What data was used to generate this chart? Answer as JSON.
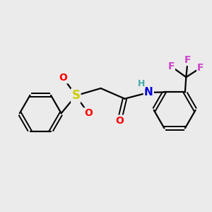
{
  "background_color": "#ebebeb",
  "bond_color": "#000000",
  "S_color": "#cccc00",
  "O_color": "#ff0000",
  "N_color": "#0000dd",
  "F_color": "#cc44cc",
  "H_color": "#44aaaa",
  "figsize": [
    3.0,
    3.0
  ],
  "dpi": 100,
  "xlim": [
    0,
    10
  ],
  "ylim": [
    0,
    10
  ]
}
